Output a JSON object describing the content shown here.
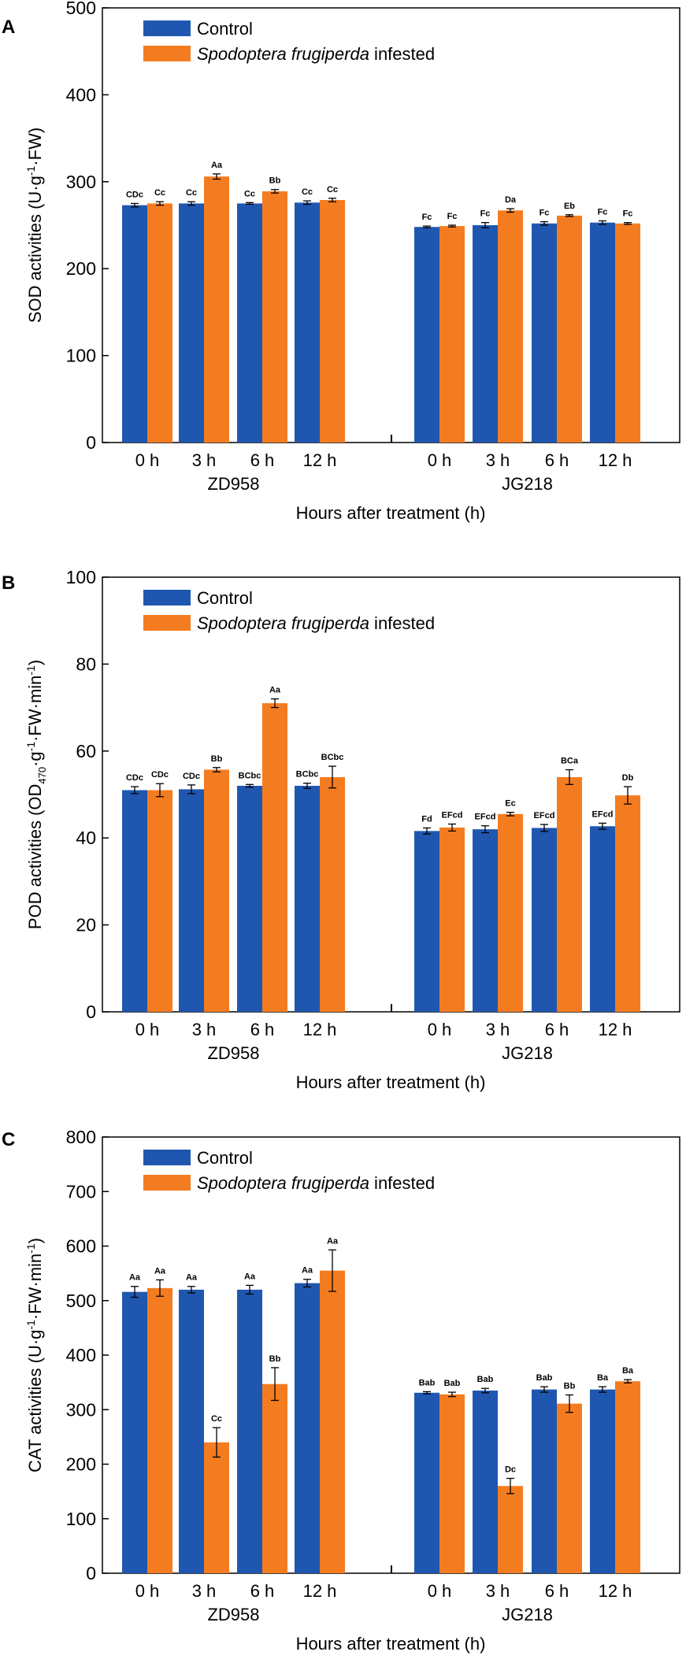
{
  "colors": {
    "control": "#1f57b0",
    "infested": "#f47c20",
    "axis": "#000000"
  },
  "chart_data": [
    {
      "panel_label": "A",
      "type": "bar",
      "ylabel_html": "SOD activities (U·g<tspan dy=\"-8\" font-size=\"14\">-1</tspan><tspan dy=\"8\">·FW)</tspan>",
      "ylabel_text": "SOD activities (U·g-1·FW)",
      "xlabel": "Hours after treatment (h)",
      "ylim": [
        0,
        500
      ],
      "yticks": [
        0,
        100,
        200,
        300,
        400,
        500
      ],
      "legend": [
        "Control",
        "Spodoptera frugiperda infested"
      ],
      "groups": [
        {
          "name": "ZD958",
          "categories": [
            "0 h",
            "3 h",
            "6 h",
            "12 h"
          ],
          "series": [
            {
              "name": "Control",
              "values": [
                273,
                275,
                275,
                276
              ],
              "errors": [
                2,
                2,
                1,
                2
              ],
              "letters": [
                "CDc",
                "Cc",
                "Cc",
                "Cc"
              ]
            },
            {
              "name": "Spodoptera frugiperda infested",
              "values": [
                275,
                306,
                289,
                279
              ],
              "errors": [
                2,
                3,
                2,
                2
              ],
              "letters": [
                "Cc",
                "Aa",
                "Bb",
                "Cc"
              ]
            }
          ]
        },
        {
          "name": "JG218",
          "categories": [
            "0 h",
            "3 h",
            "6 h",
            "12 h"
          ],
          "series": [
            {
              "name": "Control",
              "values": [
                248,
                250,
                252,
                253
              ],
              "errors": [
                1,
                3,
                2,
                2
              ],
              "letters": [
                "Fc",
                "Fc",
                "Fc",
                "Fc"
              ]
            },
            {
              "name": "Spodoptera frugiperda infested",
              "values": [
                249,
                267,
                261,
                252
              ],
              "errors": [
                1,
                2,
                1,
                1
              ],
              "letters": [
                "Fc",
                "Da",
                "Eb",
                "Fc"
              ]
            }
          ]
        }
      ]
    },
    {
      "panel_label": "B",
      "type": "bar",
      "ylabel_html": "POD activities (OD<tspan dy=\"6\" font-size=\"13\">470</tspan><tspan dy=\"-6\">·g</tspan><tspan dy=\"-8\" font-size=\"14\">-1</tspan><tspan dy=\"8\">·FW·min</tspan><tspan dy=\"-8\" font-size=\"14\">-1</tspan><tspan dy=\"8\">)</tspan>",
      "ylabel_text": "POD activities (OD470·g-1·FW·min-1)",
      "xlabel": "Hours after treatment (h)",
      "ylim": [
        0,
        100
      ],
      "yticks": [
        0,
        20,
        40,
        60,
        80,
        100
      ],
      "legend": [
        "Control",
        "Spodoptera frugiperda infested"
      ],
      "groups": [
        {
          "name": "ZD958",
          "categories": [
            "0 h",
            "3 h",
            "6 h",
            "12 h"
          ],
          "series": [
            {
              "name": "Control",
              "values": [
                51,
                51.2,
                52,
                52
              ],
              "errors": [
                0.8,
                1.0,
                0.3,
                0.6
              ],
              "letters": [
                "CDc",
                "CDc",
                "BCbc",
                "BCbc"
              ]
            },
            {
              "name": "Spodoptera frugiperda infested",
              "values": [
                51,
                55.7,
                71,
                54
              ],
              "errors": [
                1.5,
                0.5,
                1.0,
                2.5
              ],
              "letters": [
                "CDc",
                "Bb",
                "Aa",
                "BCbc"
              ]
            }
          ]
        },
        {
          "name": "JG218",
          "categories": [
            "0 h",
            "3 h",
            "6 h",
            "12 h"
          ],
          "series": [
            {
              "name": "Control",
              "values": [
                41.6,
                42,
                42.3,
                42.7
              ],
              "errors": [
                0.7,
                0.8,
                0.8,
                0.7
              ],
              "letters": [
                "Fd",
                "EFcd",
                "EFcd",
                "EFcd"
              ]
            },
            {
              "name": "Spodoptera frugiperda infested",
              "values": [
                42.4,
                45.5,
                54,
                49.8
              ],
              "errors": [
                0.8,
                0.4,
                1.7,
                2.0
              ],
              "letters": [
                "EFcd",
                "Ec",
                "BCa",
                "Db"
              ]
            }
          ]
        }
      ]
    },
    {
      "panel_label": "C",
      "type": "bar",
      "ylabel_html": "CAT activities (U·g<tspan dy=\"-8\" font-size=\"14\">-1</tspan><tspan dy=\"8\">·FW·min</tspan><tspan dy=\"-8\" font-size=\"14\">-1</tspan><tspan dy=\"8\">)</tspan>",
      "ylabel_text": "CAT activities (U·g-1·FW·min-1)",
      "xlabel": "Hours after treatment (h)",
      "ylim": [
        0,
        800
      ],
      "yticks": [
        0,
        100,
        200,
        300,
        400,
        500,
        600,
        700,
        800
      ],
      "legend": [
        "Control",
        "Spodoptera frugiperda infested"
      ],
      "groups": [
        {
          "name": "ZD958",
          "categories": [
            "0 h",
            "3 h",
            "6 h",
            "12 h"
          ],
          "series": [
            {
              "name": "Control",
              "values": [
                516,
                520,
                520,
                532
              ],
              "errors": [
                10,
                6,
                8,
                7
              ],
              "letters": [
                "Aa",
                "Aa",
                "Aa",
                "Aa"
              ]
            },
            {
              "name": "Spodoptera frugiperda infested",
              "values": [
                523,
                240,
                347,
                555
              ],
              "errors": [
                15,
                27,
                30,
                38
              ],
              "letters": [
                "Aa",
                "Cc",
                "Bb",
                "Aa"
              ]
            }
          ]
        },
        {
          "name": "JG218",
          "categories": [
            "0 h",
            "3 h",
            "6 h",
            "12 h"
          ],
          "series": [
            {
              "name": "Control",
              "values": [
                331,
                335,
                337,
                337
              ],
              "errors": [
                2,
                4,
                5,
                5
              ],
              "letters": [
                "Bab",
                "Bab",
                "Bab",
                "Ba"
              ]
            },
            {
              "name": "Spodoptera frugiperda infested",
              "values": [
                328,
                160,
                311,
                352
              ],
              "errors": [
                4,
                14,
                16,
                3
              ],
              "letters": [
                "Bab",
                "Dc",
                "Bb",
                "Ba"
              ]
            }
          ]
        }
      ]
    }
  ]
}
